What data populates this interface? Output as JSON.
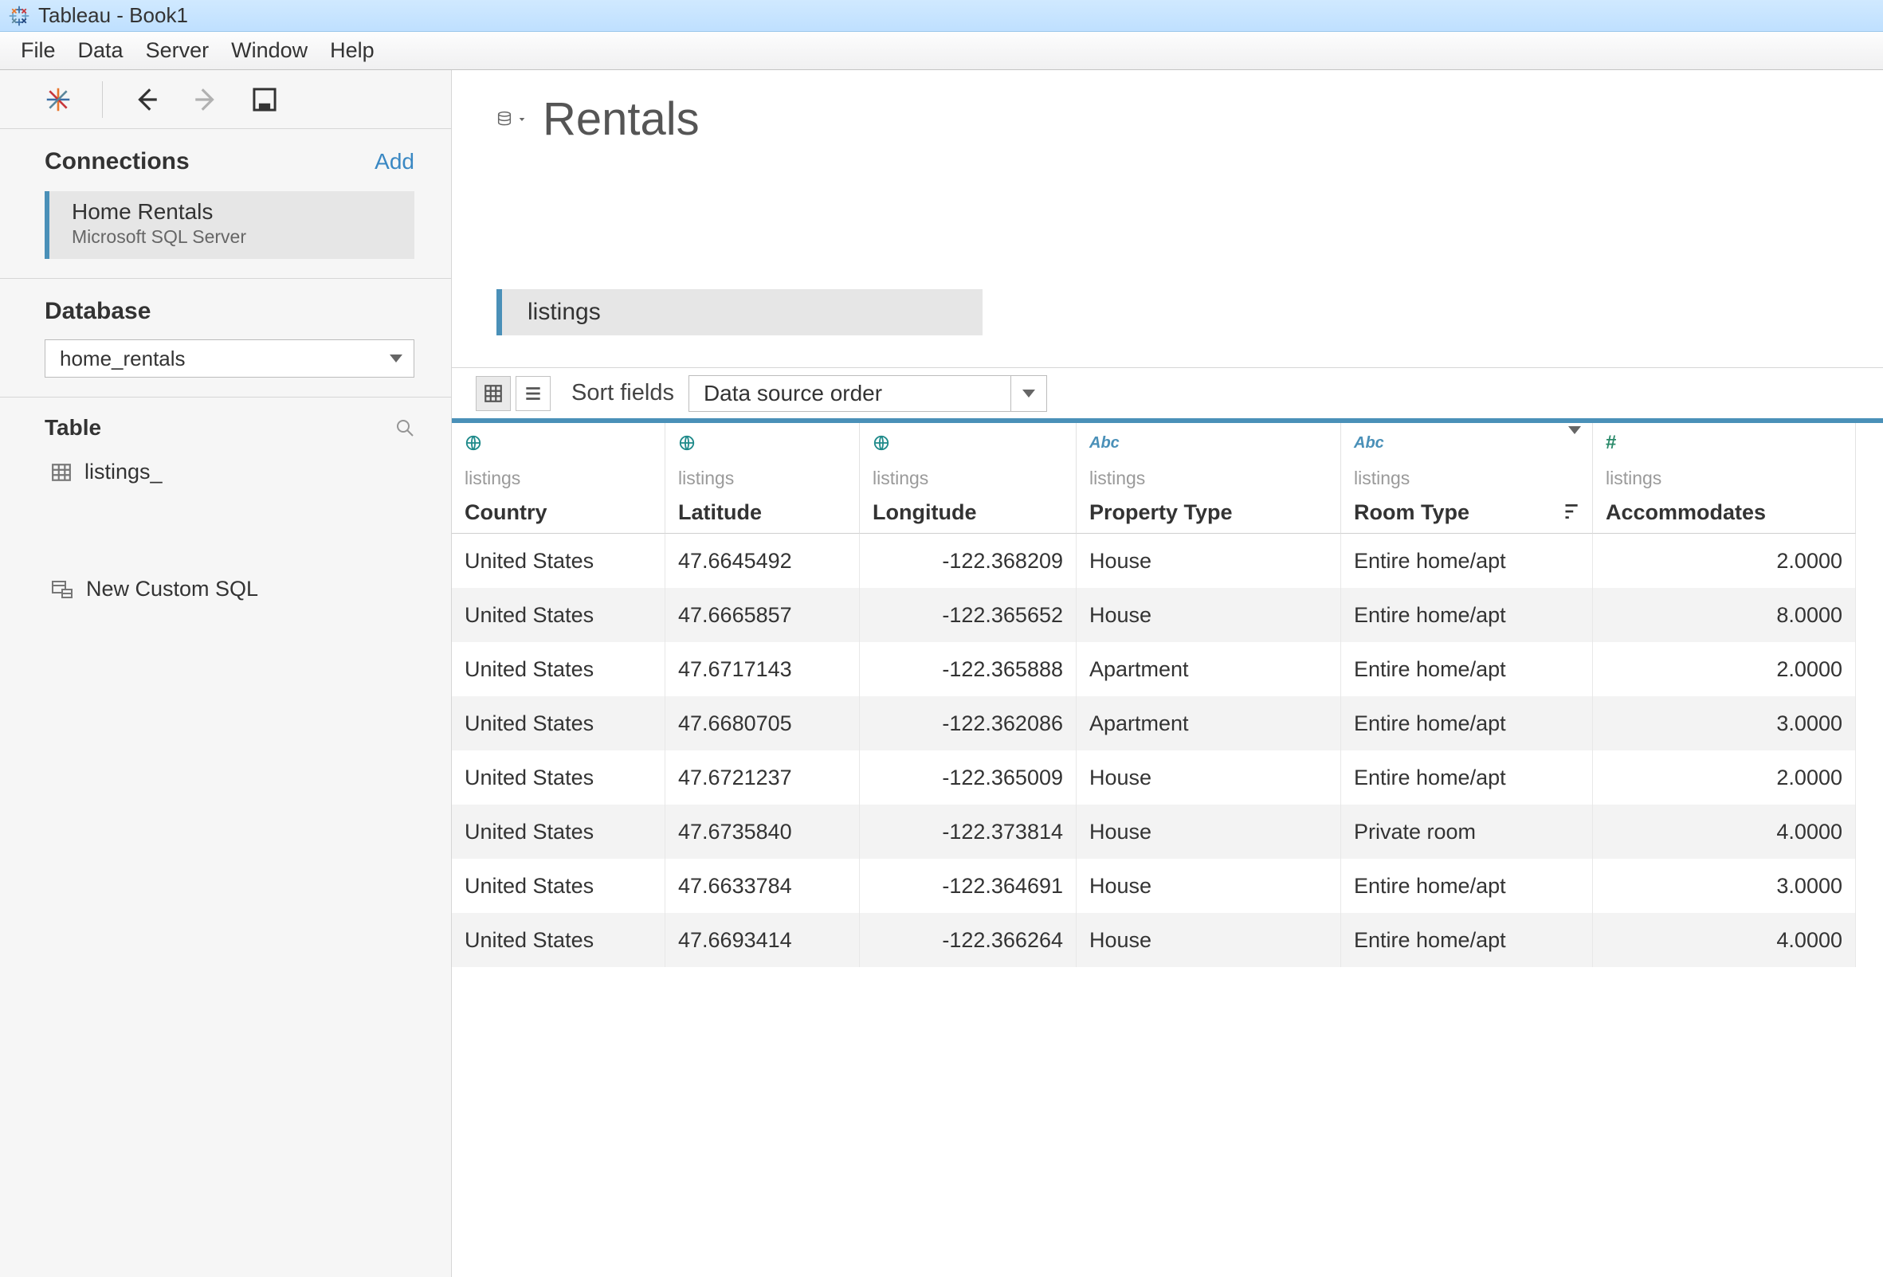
{
  "colors": {
    "titlebar_top": "#d0e9ff",
    "titlebar_bottom": "#bfe0ff",
    "accent": "#4a90b8",
    "teal": "#1f8a8a",
    "sidebar_bg": "#f6f6f6",
    "border": "#d6d6d6",
    "row_alt": "#f3f3f3",
    "link": "#3a88c3"
  },
  "window": {
    "title": "Tableau - Book1"
  },
  "menu": [
    "File",
    "Data",
    "Server",
    "Window",
    "Help"
  ],
  "sidebar": {
    "connections_label": "Connections",
    "add_label": "Add",
    "connection": {
      "name": "Home Rentals",
      "type": "Microsoft SQL Server"
    },
    "database_label": "Database",
    "database_value": "home_rentals",
    "table_label": "Table",
    "tables": [
      "listings_"
    ],
    "new_custom_sql": "New Custom SQL"
  },
  "datasource": {
    "title": "Rentals",
    "join_pill": "listings",
    "sort_label": "Sort fields",
    "sort_value": "Data source order",
    "columns": [
      {
        "type": "globe",
        "source": "listings",
        "name": "Country",
        "align": "left",
        "menu": false,
        "sort": false
      },
      {
        "type": "globe",
        "source": "listings",
        "name": "Latitude",
        "align": "left",
        "menu": false,
        "sort": false
      },
      {
        "type": "globe",
        "source": "listings",
        "name": "Longitude",
        "align": "right",
        "menu": false,
        "sort": false
      },
      {
        "type": "abc",
        "source": "listings",
        "name": "Property Type",
        "align": "left",
        "menu": false,
        "sort": false
      },
      {
        "type": "abc",
        "source": "listings",
        "name": "Room Type",
        "align": "left",
        "menu": true,
        "sort": true
      },
      {
        "type": "hash",
        "source": "listings",
        "name": "Accommodates",
        "align": "right",
        "menu": false,
        "sort": false
      }
    ],
    "rows": [
      [
        "United States",
        "47.6645492",
        "-122.368209",
        "House",
        "Entire home/apt",
        "2.0000"
      ],
      [
        "United States",
        "47.6665857",
        "-122.365652",
        "House",
        "Entire home/apt",
        "8.0000"
      ],
      [
        "United States",
        "47.6717143",
        "-122.365888",
        "Apartment",
        "Entire home/apt",
        "2.0000"
      ],
      [
        "United States",
        "47.6680705",
        "-122.362086",
        "Apartment",
        "Entire home/apt",
        "3.0000"
      ],
      [
        "United States",
        "47.6721237",
        "-122.365009",
        "House",
        "Entire home/apt",
        "2.0000"
      ],
      [
        "United States",
        "47.6735840",
        "-122.373814",
        "House",
        "Private room",
        "4.0000"
      ],
      [
        "United States",
        "47.6633784",
        "-122.364691",
        "House",
        "Entire home/apt",
        "3.0000"
      ],
      [
        "United States",
        "47.6693414",
        "-122.366264",
        "House",
        "Entire home/apt",
        "4.0000"
      ]
    ]
  }
}
